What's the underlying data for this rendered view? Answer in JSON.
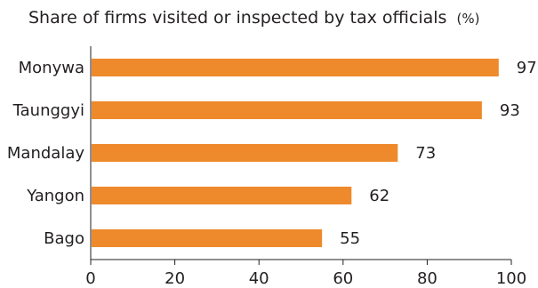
{
  "chart_data": {
    "type": "bar",
    "orientation": "horizontal",
    "title": "Share of firms visited or inspected by tax officials",
    "title_unit": "(%)",
    "categories": [
      "Monywa",
      "Taunggyi",
      "Mandalay",
      "Yangon",
      "Bago"
    ],
    "values": [
      97,
      93,
      73,
      62,
      55
    ],
    "xlim": [
      0,
      100
    ],
    "xticks": [
      0,
      20,
      40,
      60,
      80,
      100
    ],
    "xlabel": "",
    "ylabel": "",
    "grid": false,
    "legend": "none",
    "colors": {
      "bar": "#ee8a2c",
      "text": "#231f20",
      "axis": "#231f20"
    }
  }
}
